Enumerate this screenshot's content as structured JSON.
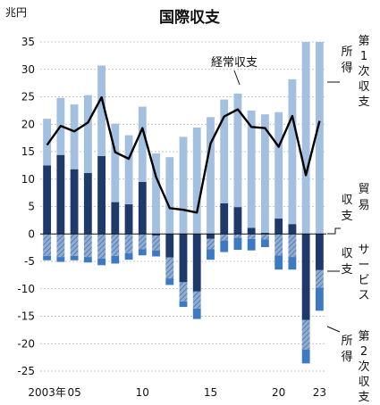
{
  "chart_data": {
    "type": "bar",
    "title": "国際収支",
    "unit": "兆円",
    "ylim": [
      -25,
      35
    ],
    "yticks": [
      35,
      30,
      25,
      20,
      15,
      10,
      5,
      0,
      -5,
      -10,
      -15,
      -20,
      -25
    ],
    "xtick_labels": [
      {
        "index": 0,
        "label": "2003年"
      },
      {
        "index": 2,
        "label": "05"
      },
      {
        "index": 7,
        "label": "10"
      },
      {
        "index": 12,
        "label": "15"
      },
      {
        "index": 17,
        "label": "20"
      },
      {
        "index": 20,
        "label": "23"
      }
    ],
    "years": [
      2003,
      2004,
      2005,
      2006,
      2007,
      2008,
      2009,
      2010,
      2011,
      2012,
      2013,
      2014,
      2015,
      2016,
      2017,
      2018,
      2019,
      2020,
      2021,
      2022,
      2023
    ],
    "series": [
      {
        "name": "貿易収支",
        "color": "#1f3a6a",
        "values": [
          12.5,
          14.4,
          11.8,
          11.1,
          14.2,
          5.8,
          5.4,
          9.5,
          -0.3,
          -4.3,
          -8.8,
          -10.5,
          -0.9,
          5.6,
          4.9,
          1.1,
          0.2,
          2.8,
          1.8,
          -15.7,
          -6.6
        ]
      },
      {
        "name": "サービス収支",
        "color": "#8fadd3",
        "hatched": true,
        "values": [
          -4.0,
          -4.2,
          -4.0,
          -4.2,
          -4.5,
          -4.0,
          -3.5,
          -2.8,
          -2.7,
          -3.8,
          -3.5,
          -3.1,
          -1.9,
          -1.2,
          -0.7,
          -0.9,
          -1.0,
          -3.9,
          -4.2,
          -5.4,
          -3.2
        ]
      },
      {
        "name": "第1次所得収支",
        "color": "#a4c0e0",
        "values": [
          8.5,
          10.4,
          11.8,
          14.2,
          16.5,
          14.3,
          12.6,
          13.7,
          14.7,
          14.0,
          17.7,
          19.4,
          21.3,
          18.9,
          20.7,
          21.4,
          21.6,
          19.4,
          26.4,
          35.0,
          35.0
        ]
      },
      {
        "name": "第2次所得収支",
        "color": "#3e7ac1",
        "values": [
          -0.8,
          -0.9,
          -0.8,
          -1.0,
          -1.2,
          -1.4,
          -1.2,
          -1.1,
          -1.1,
          -1.2,
          -1.0,
          -1.9,
          -1.9,
          -2.1,
          -2.2,
          -2.1,
          -1.4,
          -2.6,
          -2.3,
          -2.5,
          -4.2
        ]
      },
      {
        "name": "経常収支",
        "type": "line",
        "color": "#000000",
        "values": [
          16.2,
          19.7,
          18.7,
          20.3,
          24.9,
          14.9,
          13.7,
          19.3,
          10.4,
          4.7,
          4.4,
          3.9,
          16.5,
          21.4,
          22.7,
          19.5,
          19.3,
          15.9,
          21.5,
          10.7,
          20.6
        ]
      }
    ],
    "labels": {
      "current_account": "経常収支",
      "primary_income": [
        "所",
        "得",
        "第",
        "1",
        "次",
        "収",
        "支"
      ],
      "trade": [
        "貿",
        "易",
        "収",
        "支"
      ],
      "services": [
        "サ",
        "ー",
        "ビ",
        "ス",
        "収",
        "支"
      ],
      "secondary_income": [
        "所",
        "得",
        "第",
        "2",
        "次",
        "収",
        "支"
      ]
    }
  }
}
